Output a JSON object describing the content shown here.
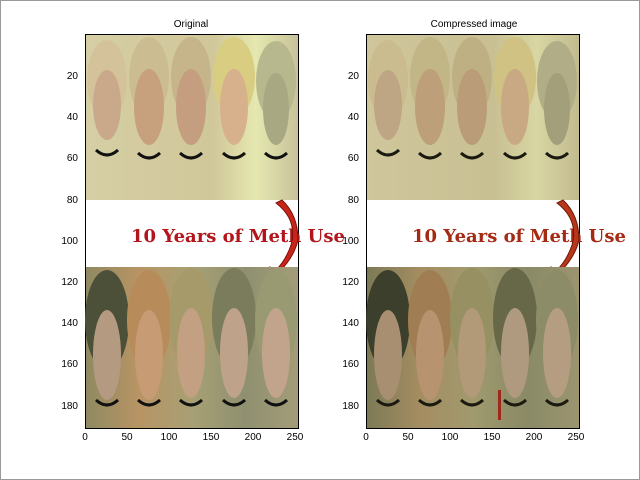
{
  "figure": {
    "panels": [
      {
        "id": "original",
        "title": "Original",
        "overlay_text": "10 Years of Meth Use",
        "x_ticks": [
          "0",
          "50",
          "100",
          "150",
          "200",
          "250"
        ],
        "y_ticks": [
          "20",
          "40",
          "60",
          "80",
          "100",
          "120",
          "140",
          "160",
          "180"
        ],
        "palette": {
          "top_bg": "#d9d4a6",
          "face": "#c9a98a",
          "hair": "#b8a070",
          "bottom_bg": "#a69a6e",
          "bottom_face": "#b59777",
          "bottom_hair": "#6f6a4a",
          "text_red": "#b3151b"
        }
      },
      {
        "id": "compressed",
        "title": "Compressed image",
        "overlay_text": "10 Years of Meth Use",
        "x_ticks": [
          "0",
          "50",
          "100",
          "150",
          "200",
          "250"
        ],
        "y_ticks": [
          "20",
          "40",
          "60",
          "80",
          "100",
          "120",
          "140",
          "160",
          "180"
        ],
        "palette": {
          "top_bg": "#cfc79b",
          "face": "#c7b084",
          "hair": "#b1a276",
          "bottom_bg": "#9b9469",
          "bottom_face": "#b19a72",
          "bottom_hair": "#4d4a31",
          "text_red": "#a52a14"
        }
      }
    ]
  }
}
